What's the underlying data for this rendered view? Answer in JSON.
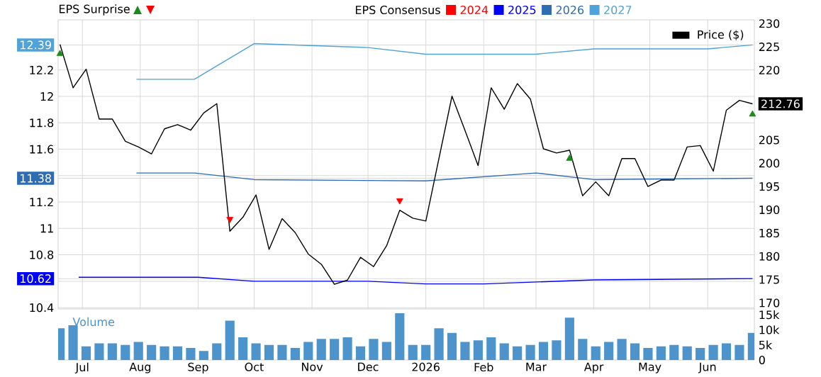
{
  "chart_data": [
    {
      "type": "line",
      "legend_title": "EPS Consensus",
      "legend": "top right",
      "grid": true,
      "tick_labels": "y",
      "xlim": [
        "2025-06-18",
        "2026-06-26"
      ],
      "xticks": [
        {
          "value": "2025-07-01",
          "label": null
        },
        {
          "value": "2025-08-01",
          "label": null
        },
        {
          "value": "2025-09-01",
          "label": null
        },
        {
          "value": "2025-10-01",
          "label": null
        },
        {
          "value": "2025-11-01",
          "label": null
        },
        {
          "value": "2025-12-01",
          "label": null
        },
        {
          "value": "2026-01-01",
          "label": null
        },
        {
          "value": "2026-02-01",
          "label": null
        },
        {
          "value": "2026-03-01",
          "label": null
        },
        {
          "value": "2026-04-01",
          "label": null
        },
        {
          "value": "2026-05-01",
          "label": null
        },
        {
          "value": "2026-06-01",
          "label": null
        }
      ],
      "ylim": [
        10.39,
        12.58
      ],
      "yticks": [
        10.4,
        {
          "value": 10.6,
          "label": null
        },
        {
          "value": 10.62,
          "label": "10.62"
        },
        10.8,
        11,
        11.2,
        {
          "value": 11.38,
          "label": "11.38"
        },
        {
          "value": 11.4,
          "label": null
        },
        11.6,
        11.8,
        12,
        12.2,
        {
          "value": 12.39,
          "label": "12.39"
        }
      ],
      "y2lim": [
        168.7,
        230.8
      ],
      "y2ticks": [
        170,
        175,
        180,
        185,
        190,
        195,
        200,
        205,
        {
          "value": 212.76,
          "label": "212.76"
        },
        220,
        225,
        230
      ],
      "annotations": [
        "EPS Surprise"
      ],
      "series": [
        {
          "name": "2024",
          "color": "#ff0000"
        },
        {
          "name": "2025",
          "color": "#0000ff",
          "x": [
            "2025-06-29",
            "2025-09-01",
            "2025-10-01",
            "2025-12-01",
            "2026-01-01",
            "2026-02-01",
            "2026-04-01",
            "2026-06-25"
          ],
          "values": [
            10.63,
            10.63,
            10.6,
            10.6,
            10.58,
            10.58,
            10.61,
            10.62
          ]
        },
        {
          "name": "2026",
          "color": "#2e6db4",
          "x": [
            "2025-07-30",
            "2025-08-30",
            "2025-10-01",
            "2026-01-01",
            "2026-03-01",
            "2026-04-01",
            "2026-06-25"
          ],
          "values": [
            11.42,
            11.42,
            11.37,
            11.36,
            11.42,
            11.37,
            11.38
          ]
        },
        {
          "name": "2027",
          "color": "#4fa3d8",
          "x": [
            "2025-07-30",
            "2025-08-30",
            "2025-10-01",
            "2025-12-01",
            "2026-01-01",
            "2026-03-01",
            "2026-04-01",
            "2026-06-01",
            "2026-06-25"
          ],
          "values": [
            12.13,
            12.13,
            12.4,
            12.37,
            12.32,
            12.32,
            12.36,
            12.36,
            12.39
          ]
        },
        {
          "name": "Price ($)",
          "color": "#000000",
          "axis": "y2",
          "x": [
            "2025-06-19",
            "2025-06-26",
            "2025-07-03",
            "2025-07-10",
            "2025-07-17",
            "2025-07-24",
            "2025-07-31",
            "2025-08-07",
            "2025-08-14",
            "2025-08-21",
            "2025-08-28",
            "2025-09-04",
            "2025-09-11",
            "2025-09-18",
            "2025-09-25",
            "2025-10-02",
            "2025-10-09",
            "2025-10-16",
            "2025-10-23",
            "2025-10-30",
            "2025-11-06",
            "2025-11-13",
            "2025-11-20",
            "2025-11-27",
            "2025-12-04",
            "2025-12-11",
            "2025-12-18",
            "2025-12-25",
            "2026-01-01",
            "2026-01-08",
            "2026-01-15",
            "2026-01-22",
            "2026-01-29",
            "2026-02-05",
            "2026-02-12",
            "2026-02-19",
            "2026-02-26",
            "2026-03-05",
            "2026-03-12",
            "2026-03-19",
            "2026-03-26",
            "2026-04-02",
            "2026-04-09",
            "2026-04-16",
            "2026-04-23",
            "2026-04-30",
            "2026-05-07",
            "2026-05-14",
            "2026-05-21",
            "2026-05-28",
            "2026-06-04",
            "2026-06-11",
            "2026-06-18",
            "2026-06-25"
          ],
          "values": [
            225.5,
            216.2,
            220.2,
            209.5,
            209.5,
            204.7,
            203.5,
            202.0,
            207.4,
            208.3,
            207.1,
            210.8,
            212.8,
            185.4,
            188.4,
            193.2,
            181.5,
            188.1,
            185.1,
            180.5,
            178.3,
            174.0,
            174.9,
            179.8,
            177.8,
            182.3,
            189.9,
            188.2,
            187.6,
            201.0,
            214.4,
            207.0,
            199.5,
            216.2,
            211.6,
            217.1,
            213.8,
            203.1,
            202.2,
            202.8,
            193.0,
            196.0,
            193.0,
            201.0,
            201.0,
            195.0,
            196.4,
            196.4,
            203.5,
            203.8,
            198.3,
            211.4,
            213.5,
            212.76
          ]
        },
        {
          "type": "scatter",
          "marker": "triangle",
          "color": "#1a8a1a",
          "axis": "y2",
          "x": [
            "2025-06-19",
            "2026-03-19",
            "2026-06-25"
          ],
          "values": [
            223.5,
            201.0,
            210.5
          ]
        },
        {
          "type": "scatter",
          "marker": "triangle",
          "color": "#ff0000",
          "axis": "y2",
          "x": [
            "2025-09-18",
            "2025-12-18"
          ],
          "values": [
            188.0,
            192.0
          ]
        }
      ]
    },
    {
      "type": "bar",
      "title": "Volume",
      "color": "#4d94cc",
      "xlim": [
        "2025-06-18",
        "2026-06-26"
      ],
      "xticks": [
        {
          "value": "2025-07-01",
          "label": "Jul"
        },
        {
          "value": "2025-08-01",
          "label": "Aug"
        },
        {
          "value": "2025-09-01",
          "label": "Sep"
        },
        {
          "value": "2025-10-01",
          "label": "Oct"
        },
        {
          "value": "2025-11-01",
          "label": "Nov"
        },
        {
          "value": "2025-12-01",
          "label": "Dec"
        },
        {
          "value": "2026-01-01",
          "label": "2026"
        },
        {
          "value": "2026-02-01",
          "label": "Feb"
        },
        {
          "value": "2026-03-01",
          "label": "Mar"
        },
        {
          "value": "2026-04-01",
          "label": "Apr"
        },
        {
          "value": "2026-05-01",
          "label": "May"
        },
        {
          "value": "2026-06-01",
          "label": "Jun"
        }
      ],
      "ylim": [
        0,
        16.9
      ],
      "yticks": [
        0,
        {
          "value": 5,
          "label": "5k"
        },
        {
          "value": 10,
          "label": "10k"
        },
        {
          "value": 15,
          "label": "15k"
        }
      ],
      "x": [
        "2025-06-19",
        "2025-06-26",
        "2025-07-03",
        "2025-07-10",
        "2025-07-17",
        "2025-07-24",
        "2025-07-31",
        "2025-08-07",
        "2025-08-14",
        "2025-08-21",
        "2025-08-28",
        "2025-09-04",
        "2025-09-11",
        "2025-09-18",
        "2025-09-25",
        "2025-10-02",
        "2025-10-09",
        "2025-10-16",
        "2025-10-23",
        "2025-10-30",
        "2025-11-06",
        "2025-11-13",
        "2025-11-20",
        "2025-11-27",
        "2025-12-04",
        "2025-12-11",
        "2025-12-18",
        "2025-12-25",
        "2026-01-01",
        "2026-01-08",
        "2026-01-15",
        "2026-01-22",
        "2026-01-29",
        "2026-02-05",
        "2026-02-12",
        "2026-02-19",
        "2026-02-26",
        "2026-03-05",
        "2026-03-12",
        "2026-03-19",
        "2026-03-26",
        "2026-04-02",
        "2026-04-09",
        "2026-04-16",
        "2026-04-23",
        "2026-04-30",
        "2026-05-07",
        "2026-05-14",
        "2026-05-21",
        "2026-05-28",
        "2026-06-04",
        "2026-06-11",
        "2026-06-18",
        "2026-06-25"
      ],
      "values": [
        10.5,
        11.5,
        4.5,
        5.5,
        5.5,
        5,
        6,
        5,
        4.5,
        4.5,
        4,
        3,
        5.5,
        13,
        7.5,
        5.5,
        5,
        5,
        4,
        6,
        7,
        7,
        7.5,
        4.5,
        7,
        6,
        15.5,
        5,
        5,
        10.5,
        9,
        6,
        6.5,
        7.5,
        5.5,
        4.5,
        5,
        6,
        6.5,
        14,
        7,
        4.5,
        6,
        7,
        5.5,
        4,
        4.5,
        5,
        4.5,
        4,
        5,
        5.5,
        5,
        9
      ]
    }
  ]
}
